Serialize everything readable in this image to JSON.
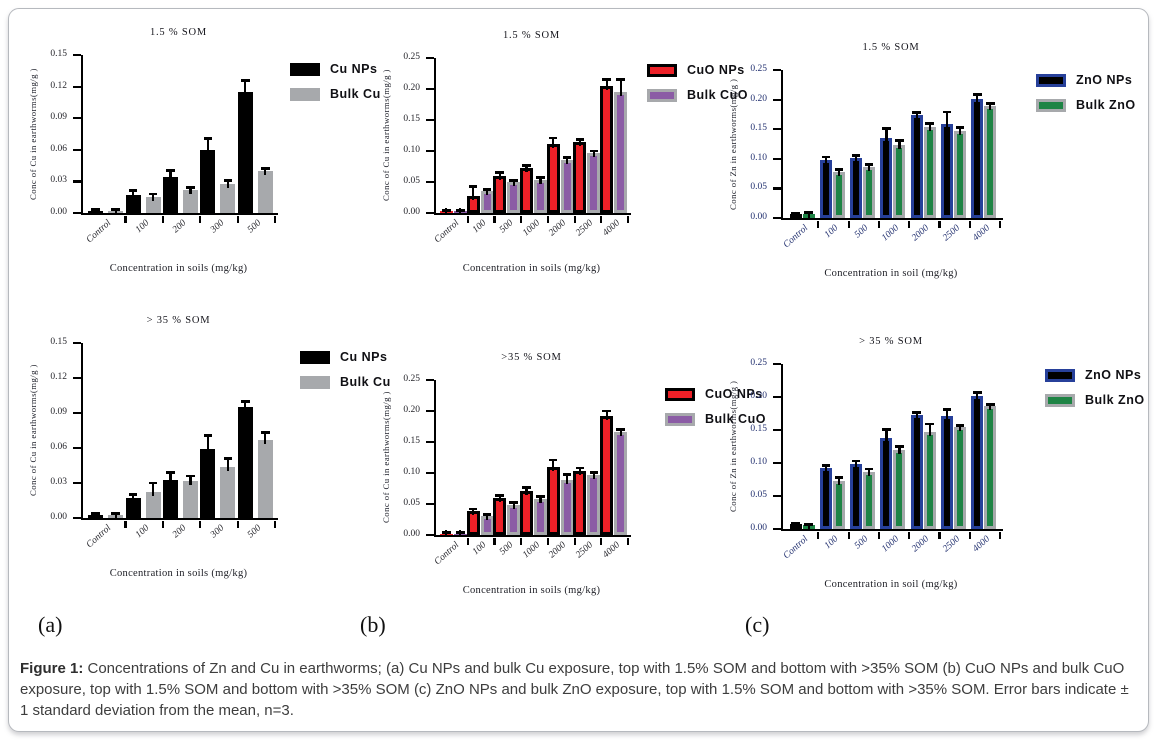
{
  "figure": {
    "panel_labels": [
      "(a)",
      "(b)",
      "(c)"
    ],
    "caption_label": "Figure 1:",
    "caption_text": " Concentrations of Zn and Cu in earthworms; (a) Cu NPs and bulk Cu exposure, top with 1.5% SOM and bottom with >35% SOM (b) CuO NPs and bulk CuO exposure, top with 1.5% SOM and bottom with >35% SOM (c) ZnO NPs and bulk ZnO exposure, top with 1.5% SOM and bottom with >35% SOM. Error bars indicate ± 1 standard deviation from the mean, n=3."
  },
  "colors": {
    "black": "#000000",
    "gray": "#a7a9ac",
    "red": "#ec2027",
    "purple": "#8b5ca5",
    "navy": "#27409a",
    "green": "#1e8445",
    "frame_border": "#b6b9be"
  },
  "chart_data": [
    {
      "id": "cu-top",
      "type": "bar",
      "panel": "a",
      "position": "top",
      "title": "1.5 % SOM",
      "ylabel": "Conc of Cu in earthworms(mg/g )",
      "xlabel": "Concentration in soils (mg/kg)",
      "ylim": [
        0,
        0.15
      ],
      "yticks": [
        0,
        0.03,
        0.06,
        0.09,
        0.12,
        0.15
      ],
      "categories": [
        "Control",
        "100",
        "200",
        "300",
        "500"
      ],
      "tick_color": "#26262c",
      "legend_position": "right",
      "series": [
        {
          "name": "Cu NPs",
          "fill": "#000000",
          "border": "#000000",
          "values": [
            0.002,
            0.017,
            0.034,
            0.06,
            0.115
          ],
          "sd": [
            0.001,
            0.004,
            0.006,
            0.011,
            0.011
          ]
        },
        {
          "name": "Bulk Cu",
          "fill": "#a7a9ac",
          "border": "#a7a9ac",
          "values": [
            0.002,
            0.015,
            0.022,
            0.028,
            0.04
          ],
          "sd": [
            0.001,
            0.003,
            0.002,
            0.003,
            0.002
          ]
        }
      ]
    },
    {
      "id": "cuo-top",
      "type": "bar",
      "panel": "b",
      "position": "top",
      "title": "1.5 % SOM",
      "ylabel": "Conc of Cu in earthworms(mg/g )",
      "xlabel": "Concentration in soils (mg/kg)",
      "ylim": [
        0,
        0.25
      ],
      "yticks": [
        0,
        0.05,
        0.1,
        0.15,
        0.2,
        0.25
      ],
      "categories": [
        "Control",
        "100",
        "500",
        "1000",
        "2000",
        "2500",
        "4000"
      ],
      "tick_color": "#26262c",
      "legend_position": "right",
      "series": [
        {
          "name": "CuO NPs",
          "fill": "#ec2027",
          "border": "#000000",
          "values": [
            0.003,
            0.027,
            0.06,
            0.072,
            0.111,
            0.114,
            0.205
          ],
          "sd": [
            0.001,
            0.016,
            0.005,
            0.004,
            0.01,
            0.005,
            0.01
          ]
        },
        {
          "name": "Bulk CuO",
          "fill": "#8b5ca5",
          "border": "#a7a9ac",
          "values": [
            0.003,
            0.036,
            0.05,
            0.054,
            0.085,
            0.097,
            0.195
          ],
          "sd": [
            0.001,
            0.002,
            0.003,
            0.003,
            0.005,
            0.003,
            0.02
          ]
        }
      ]
    },
    {
      "id": "zno-top",
      "type": "bar",
      "panel": "c",
      "position": "top",
      "title": "1.5 % SOM",
      "ylabel": "Conc of Zn in earthworms(mg/g )",
      "xlabel": "Concentration in soil (mg/kg)",
      "ylim": [
        0,
        0.25
      ],
      "yticks": [
        0,
        0.05,
        0.1,
        0.15,
        0.2,
        0.25
      ],
      "categories": [
        "Control",
        "100",
        "500",
        "1000",
        "2000",
        "2500",
        "4000"
      ],
      "tick_color": "#233170",
      "legend_position": "right",
      "series": [
        {
          "name": "ZnO NPs",
          "fill": "#000000",
          "border": "#27409a",
          "values": [
            0.006,
            0.098,
            0.102,
            0.136,
            0.174,
            0.158,
            0.201
          ],
          "sd": [
            0.002,
            0.005,
            0.004,
            0.015,
            0.004,
            0.021,
            0.007
          ]
        },
        {
          "name": "Bulk ZnO",
          "fill": "#1e8445",
          "border": "#a7a9ac",
          "values": [
            0.007,
            0.077,
            0.087,
            0.123,
            0.154,
            0.147,
            0.19
          ],
          "sd": [
            0.002,
            0.005,
            0.004,
            0.008,
            0.006,
            0.006,
            0.004
          ]
        }
      ]
    },
    {
      "id": "cu-bottom",
      "type": "bar",
      "panel": "a",
      "position": "bottom",
      "title": "> 35 % SOM",
      "ylabel": "Conc of Cu in earthworms(mg/g )",
      "xlabel": "Concentration in soils (mg/kg)",
      "ylim": [
        0,
        0.15
      ],
      "yticks": [
        0,
        0.03,
        0.06,
        0.09,
        0.12,
        0.15
      ],
      "categories": [
        "Control",
        "100",
        "200",
        "300",
        "500"
      ],
      "tick_color": "#26262c",
      "legend_position": "right",
      "series": [
        {
          "name": "Cu NPs",
          "fill": "#000000",
          "border": "#000000",
          "values": [
            0.003,
            0.017,
            0.033,
            0.059,
            0.095
          ],
          "sd": [
            0.001,
            0.003,
            0.006,
            0.012,
            0.005
          ]
        },
        {
          "name": "Bulk Cu",
          "fill": "#a7a9ac",
          "border": "#a7a9ac",
          "values": [
            0.003,
            0.022,
            0.032,
            0.044,
            0.067
          ],
          "sd": [
            0.001,
            0.008,
            0.004,
            0.007,
            0.006
          ]
        }
      ]
    },
    {
      "id": "cuo-bottom",
      "type": "bar",
      "panel": "b",
      "position": "bottom",
      "title": ">35 % SOM",
      "ylabel": "Conc of Cu in earthworms(mg/g )",
      "xlabel": "Concentration in soils (mg/kg)",
      "ylim": [
        0,
        0.25
      ],
      "yticks": [
        0,
        0.05,
        0.1,
        0.15,
        0.2,
        0.25
      ],
      "categories": [
        "Control",
        "100",
        "500",
        "1000",
        "2000",
        "2500",
        "4000"
      ],
      "tick_color": "#26262c",
      "legend_position": "right",
      "series": [
        {
          "name": "CuO NPs",
          "fill": "#ec2027",
          "border": "#000000",
          "values": [
            0.002,
            0.038,
            0.059,
            0.071,
            0.11,
            0.104,
            0.192
          ],
          "sd": [
            0.001,
            0.004,
            0.005,
            0.005,
            0.011,
            0.004,
            0.008
          ]
        },
        {
          "name": "Bulk CuO",
          "fill": "#8b5ca5",
          "border": "#a7a9ac",
          "values": [
            0.002,
            0.03,
            0.048,
            0.058,
            0.089,
            0.097,
            0.166
          ],
          "sd": [
            0.001,
            0.003,
            0.004,
            0.004,
            0.009,
            0.004,
            0.004
          ]
        }
      ]
    },
    {
      "id": "zno-bottom",
      "type": "bar",
      "panel": "c",
      "position": "bottom",
      "title": "> 35 % SOM",
      "ylabel": "Conc of Zn in earthworms(mg/g )",
      "xlabel": "Concentration in soil (mg/kg)",
      "ylim": [
        0,
        0.25
      ],
      "yticks": [
        0,
        0.05,
        0.1,
        0.15,
        0.2,
        0.25
      ],
      "categories": [
        "Control",
        "100",
        "500",
        "1000",
        "2000",
        "2500",
        "4000"
      ],
      "tick_color": "#233170",
      "legend_position": "right",
      "series": [
        {
          "name": "ZnO NPs",
          "fill": "#000000",
          "border": "#27409a",
          "values": [
            0.007,
            0.092,
            0.098,
            0.138,
            0.173,
            0.171,
            0.201
          ],
          "sd": [
            0.001,
            0.004,
            0.005,
            0.013,
            0.004,
            0.01,
            0.006
          ]
        },
        {
          "name": "Bulk ZnO",
          "fill": "#1e8445",
          "border": "#a7a9ac",
          "values": [
            0.006,
            0.073,
            0.086,
            0.12,
            0.147,
            0.154,
            0.186
          ],
          "sd": [
            0.001,
            0.005,
            0.005,
            0.005,
            0.012,
            0.003,
            0.003
          ]
        }
      ]
    }
  ]
}
